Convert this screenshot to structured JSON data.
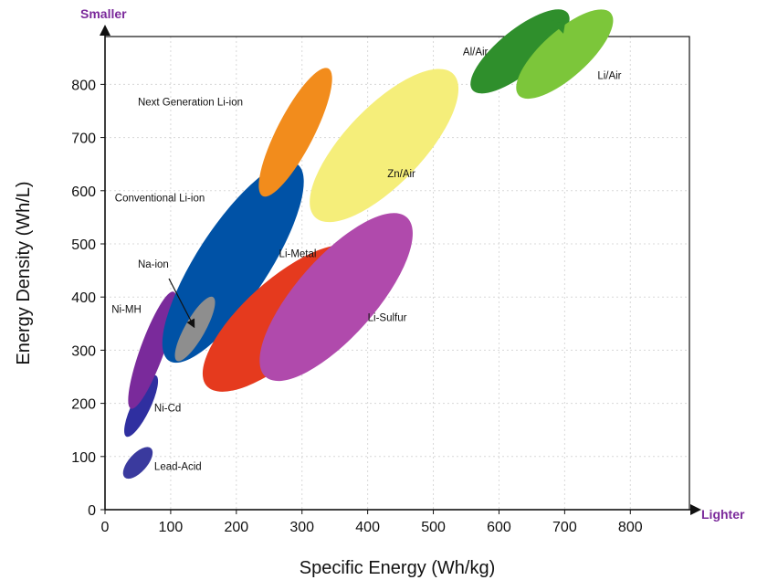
{
  "chart_data": {
    "type": "scatter",
    "xlabel": "Specific Energy (Wh/kg)",
    "ylabel": "Energy Density (Wh/L)",
    "xlim": [
      0,
      890
    ],
    "ylim": [
      0,
      890
    ],
    "xticks": [
      0,
      100,
      200,
      300,
      400,
      500,
      600,
      700,
      800
    ],
    "yticks": [
      0,
      100,
      200,
      300,
      400,
      500,
      600,
      700,
      800
    ],
    "grid": true,
    "y_direction_label": "Smaller",
    "x_direction_label": "Lighter",
    "regions": [
      {
        "name": "Lead-Acid",
        "color": "#3a3a9e",
        "x": [
          30,
          70
        ],
        "y": [
          60,
          115
        ],
        "center": [
          50,
          88
        ],
        "label_pos": [
          75,
          75
        ]
      },
      {
        "name": "Ni-Cd",
        "color": "#2f2fa0",
        "x": [
          35,
          80
        ],
        "y": [
          140,
          255
        ],
        "center": [
          55,
          195
        ],
        "label_pos": [
          75,
          185
        ]
      },
      {
        "name": "Ni-MH",
        "color": "#7a2a9b",
        "x": [
          40,
          105
        ],
        "y": [
          190,
          410
        ],
        "center": [
          72,
          300
        ],
        "label_pos": [
          10,
          370
        ]
      },
      {
        "name": "Conventional Li-ion",
        "color": "#0052a6",
        "x": [
          100,
          295
        ],
        "y": [
          280,
          650
        ],
        "center": [
          195,
          465
        ],
        "label_pos": [
          15,
          580
        ]
      },
      {
        "name": "Na-ion",
        "color": "#8e8e8e",
        "x": [
          110,
          165
        ],
        "y": [
          280,
          400
        ],
        "center": [
          137,
          340
        ],
        "label_pos": [
          50,
          455
        ]
      },
      {
        "name": "Next Generation Li-ion",
        "color": "#f28c1c",
        "x": [
          240,
          340
        ],
        "y": [
          590,
          830
        ],
        "center": [
          290,
          710
        ],
        "label_pos": [
          50,
          760
        ]
      },
      {
        "name": "Li-Metal",
        "color": "#e53a1e",
        "x": [
          155,
          385
        ],
        "y": [
          230,
          485
        ],
        "center": [
          270,
          360
        ],
        "label_pos": [
          265,
          475
        ]
      },
      {
        "name": "Li-Sulfur",
        "color": "#b04aac",
        "x": [
          245,
          460
        ],
        "y": [
          250,
          550
        ],
        "center": [
          352,
          400
        ],
        "label_pos": [
          400,
          355
        ]
      },
      {
        "name": "Zn/Air",
        "color": "#f5ee7a",
        "x": [
          320,
          530
        ],
        "y": [
          550,
          820
        ],
        "center": [
          425,
          685
        ],
        "label_pos": [
          430,
          625
        ]
      },
      {
        "name": "Al/Air",
        "color": "#2f8f2c",
        "x": [
          560,
          705
        ],
        "y": [
          790,
          935
        ],
        "center": [
          632,
          862
        ],
        "label_pos": [
          545,
          855
        ]
      },
      {
        "name": "Li/Air",
        "color": "#7cc63a",
        "x": [
          630,
          770
        ],
        "y": [
          780,
          935
        ],
        "center": [
          700,
          857
        ],
        "label_pos": [
          750,
          810
        ]
      }
    ]
  }
}
